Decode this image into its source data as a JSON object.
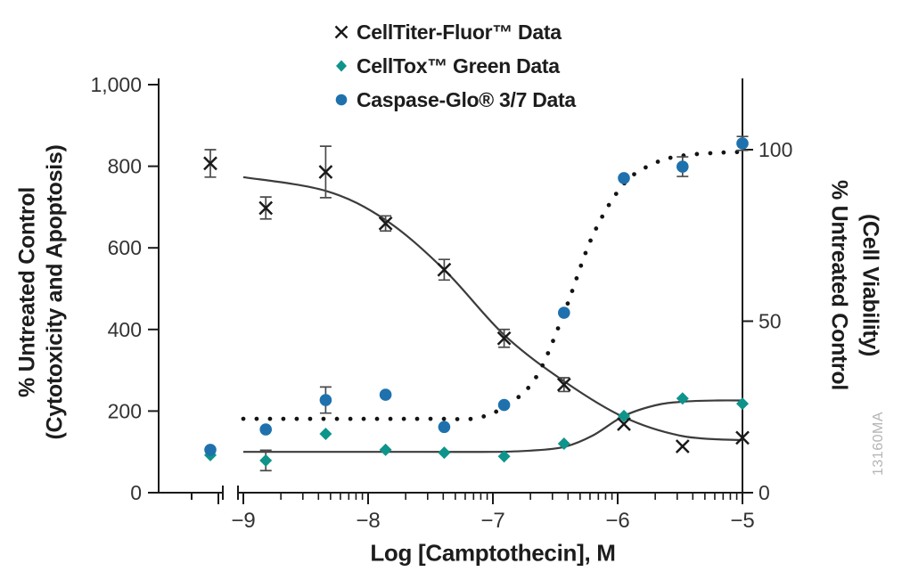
{
  "figure": {
    "watermark": "13160MA",
    "legend": [
      {
        "label": "CellTiter-Fluor™ Data",
        "marker": "x",
        "color": "#1a1a1a"
      },
      {
        "label": "CellTox™ Green Data",
        "marker": "diamond",
        "color": "#0e948b"
      },
      {
        "label": "Caspase-Glo® 3/7 Data",
        "marker": "circle",
        "color": "#1e71ad"
      }
    ],
    "left_axis": {
      "title_line1": "% Untreated Control",
      "title_line2": "(Cytotoxicity and Apoptosis)",
      "ticks": [
        {
          "v": 0,
          "label": "0"
        },
        {
          "v": 200,
          "label": "200"
        },
        {
          "v": 400,
          "label": "400"
        },
        {
          "v": 600,
          "label": "600"
        },
        {
          "v": 800,
          "label": "800"
        },
        {
          "v": 1000,
          "label": "1,000"
        }
      ]
    },
    "right_axis": {
      "title_line1": "% Untreated Control",
      "title_line2": "(Cell Viability)",
      "ticks": [
        {
          "v": 0,
          "label": "0"
        },
        {
          "v": 50,
          "label": "50"
        },
        {
          "v": 100,
          "label": "100"
        }
      ]
    },
    "x_axis": {
      "title": "Log [Camptothecin], M",
      "ticks": [
        {
          "v": -9,
          "label": "−9"
        },
        {
          "v": -8,
          "label": "−8"
        },
        {
          "v": -7,
          "label": "−7"
        },
        {
          "v": -6,
          "label": "−6"
        },
        {
          "v": -5,
          "label": "−5"
        }
      ],
      "minor_log_ticks": true,
      "axis_break": true
    }
  },
  "chart_data": {
    "type": "scatter",
    "title": "",
    "xlabel": "Log [Camptothecin], M",
    "x_scale": "log10 molar concentration, axis break before −9 (untreated control shown left of break)",
    "left_axis": {
      "label": "% Untreated Control (Cytotoxicity and Apoptosis)",
      "range": [
        0,
        1015
      ],
      "ticks": [
        0,
        200,
        400,
        600,
        800,
        1000
      ]
    },
    "right_axis": {
      "label": "% Untreated Control (Cell Viability)",
      "range": [
        0,
        120
      ],
      "ticks": [
        0,
        50,
        100
      ]
    },
    "x_values": [
      "untreated",
      -8.82,
      -8.34,
      -7.86,
      -7.39,
      -6.91,
      -6.43,
      -5.95,
      -5.48,
      -5.0
    ],
    "grid": false,
    "legend_position": "top-center",
    "series": [
      {
        "name": "CellTiter-Fluor™ Data",
        "axis": "right",
        "marker": "x",
        "color": "#1a1a1a",
        "points": [
          {
            "x": "untreated",
            "y": 96,
            "err": 4
          },
          {
            "x": -8.82,
            "y": 83,
            "err": 3.2
          },
          {
            "x": -8.34,
            "y": 93.5,
            "err": 7.5
          },
          {
            "x": -7.86,
            "y": 78.5,
            "err": 2.2
          },
          {
            "x": -7.39,
            "y": 65,
            "err": 3
          },
          {
            "x": -6.91,
            "y": 45,
            "err": 2.6
          },
          {
            "x": -6.43,
            "y": 31.5,
            "err": 2
          },
          {
            "x": -5.95,
            "y": 20,
            "err": 0
          },
          {
            "x": -5.48,
            "y": 13.5,
            "err": 0
          },
          {
            "x": -5.0,
            "y": 16,
            "err": 0
          }
        ]
      },
      {
        "name": "CellTox™ Green Data",
        "axis": "left",
        "marker": "diamond",
        "color": "#0e948b",
        "points": [
          {
            "x": "untreated",
            "y": 92,
            "err": 0
          },
          {
            "x": -8.82,
            "y": 79,
            "err": 25
          },
          {
            "x": -8.34,
            "y": 144,
            "err": 0
          },
          {
            "x": -7.86,
            "y": 105,
            "err": 0
          },
          {
            "x": -7.39,
            "y": 98,
            "err": 0
          },
          {
            "x": -6.91,
            "y": 89,
            "err": 0
          },
          {
            "x": -6.43,
            "y": 120,
            "err": 0
          },
          {
            "x": -5.95,
            "y": 188,
            "err": 0
          },
          {
            "x": -5.48,
            "y": 231,
            "err": 0
          },
          {
            "x": -5.0,
            "y": 218,
            "err": 0
          }
        ]
      },
      {
        "name": "Caspase-Glo® 3/7 Data",
        "axis": "left",
        "marker": "circle",
        "color": "#1e71ad",
        "points": [
          {
            "x": "untreated",
            "y": 105,
            "err": 0
          },
          {
            "x": -8.82,
            "y": 155,
            "err": 0
          },
          {
            "x": -8.34,
            "y": 227,
            "err": 32
          },
          {
            "x": -7.86,
            "y": 240,
            "err": 0
          },
          {
            "x": -7.39,
            "y": 161,
            "err": 0
          },
          {
            "x": -6.91,
            "y": 215,
            "err": 0
          },
          {
            "x": -6.43,
            "y": 441,
            "err": 0
          },
          {
            "x": -5.95,
            "y": 771,
            "err": 0
          },
          {
            "x": -5.48,
            "y": 799,
            "err": 24
          },
          {
            "x": -5.0,
            "y": 856,
            "err": 17
          }
        ]
      }
    ],
    "fits": [
      {
        "name": "CellTiter-Fluor fit",
        "axis": "right",
        "style": "solid",
        "samples": [
          [
            -9,
            92
          ],
          [
            -8.34,
            88
          ],
          [
            -7.86,
            79.5
          ],
          [
            -7.39,
            65
          ],
          [
            -6.91,
            46
          ],
          [
            -6.43,
            32.5
          ],
          [
            -5.95,
            22
          ],
          [
            -5.48,
            16.5
          ],
          [
            -5,
            15.3
          ]
        ]
      },
      {
        "name": "CellTox Green fit",
        "axis": "left",
        "style": "solid",
        "samples": [
          [
            -9,
            100
          ],
          [
            -7.5,
            100
          ],
          [
            -7,
            100
          ],
          [
            -6.7,
            103
          ],
          [
            -6.43,
            112
          ],
          [
            -6.2,
            140
          ],
          [
            -5.95,
            188
          ],
          [
            -5.7,
            214
          ],
          [
            -5.48,
            223
          ],
          [
            -5.2,
            226
          ],
          [
            -5,
            226
          ]
        ]
      },
      {
        "name": "Caspase-Glo 3/7 fit",
        "axis": "left",
        "style": "dotted",
        "samples": [
          [
            -9,
            181
          ],
          [
            -7.5,
            181
          ],
          [
            -7.15,
            182
          ],
          [
            -6.91,
            210
          ],
          [
            -6.66,
            280
          ],
          [
            -6.43,
            440
          ],
          [
            -6.2,
            630
          ],
          [
            -5.95,
            757
          ],
          [
            -5.7,
            808
          ],
          [
            -5.48,
            826
          ],
          [
            -5.2,
            833
          ],
          [
            -5,
            835
          ]
        ]
      }
    ]
  }
}
